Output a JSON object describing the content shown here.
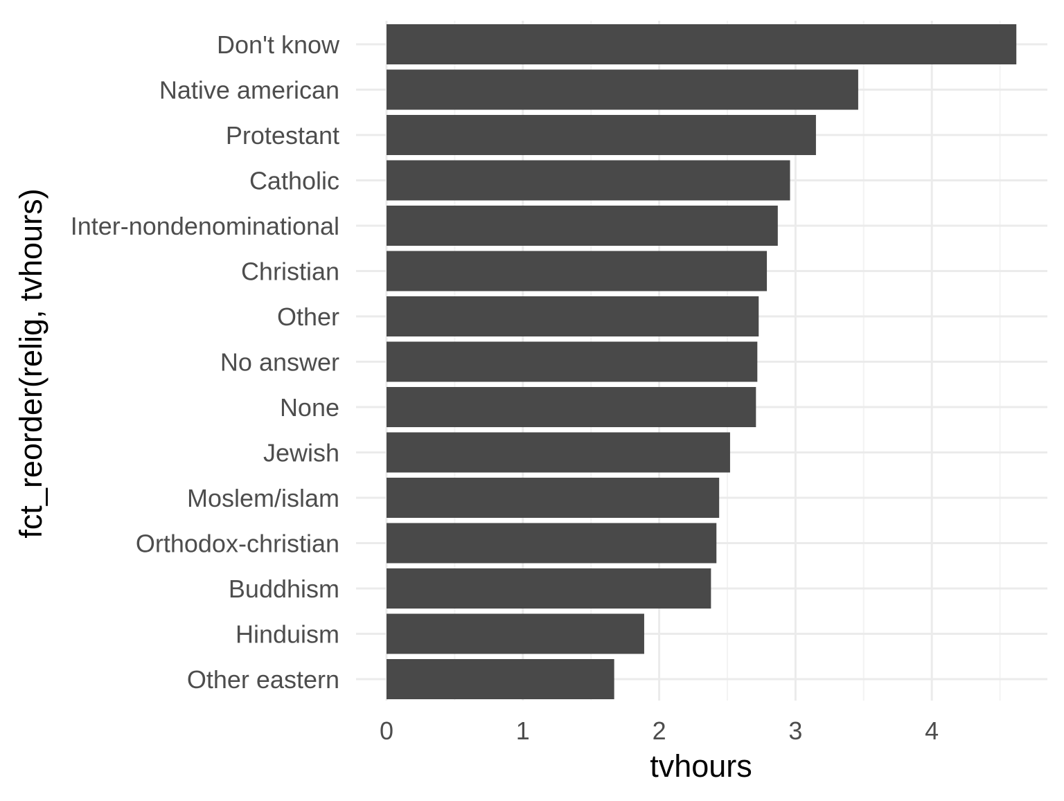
{
  "chart_data": {
    "type": "bar",
    "orientation": "horizontal",
    "xlabel": "tvhours",
    "ylabel": "fct_reorder(relig, tvhours)",
    "xlim": [
      0,
      4.85
    ],
    "x_ticks": [
      0,
      1,
      2,
      3,
      4
    ],
    "grid": true,
    "theme": "minimal",
    "colors": {
      "bar": "#494949",
      "grid_major": "#ebebeb",
      "grid_minor": "#f3f3f3"
    },
    "categories": [
      "Don't know",
      "Native american",
      "Protestant",
      "Catholic",
      "Inter-nondenominational",
      "Christian",
      "Other",
      "No answer",
      "None",
      "Jewish",
      "Moslem/islam",
      "Orthodox-christian",
      "Buddhism",
      "Hinduism",
      "Other eastern"
    ],
    "values": [
      4.62,
      3.46,
      3.15,
      2.96,
      2.87,
      2.79,
      2.73,
      2.72,
      2.71,
      2.52,
      2.44,
      2.42,
      2.38,
      1.89,
      1.67
    ]
  }
}
